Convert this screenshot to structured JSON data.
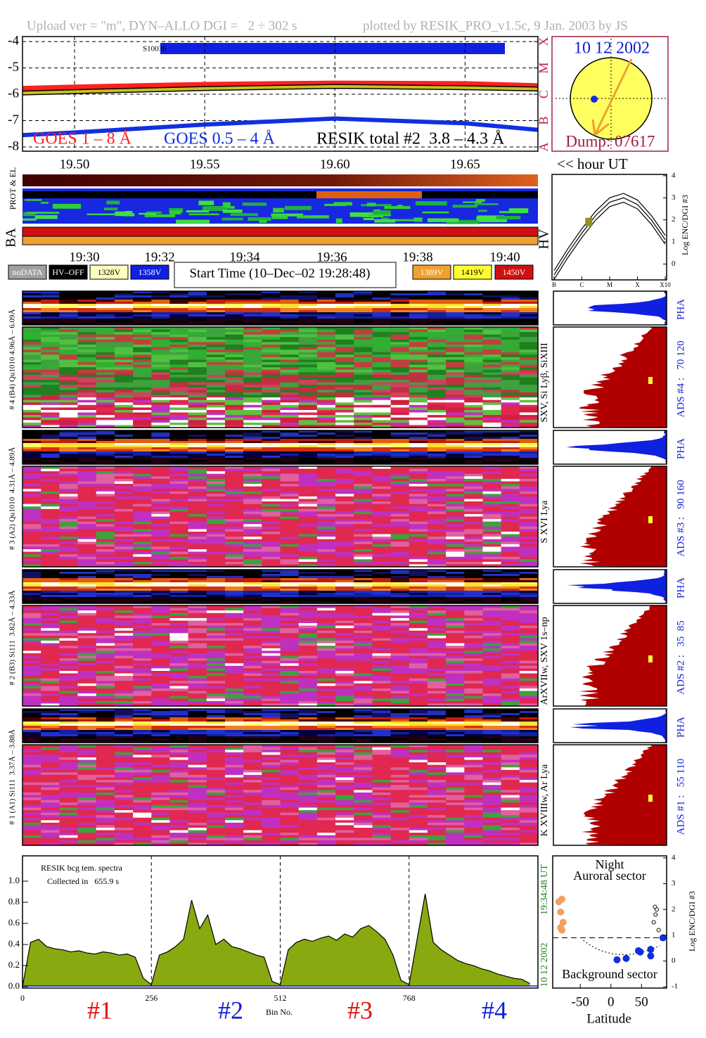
{
  "header": {
    "upload": "Upload ver = \"m\", DYN–ALLO DGI =   2 ÷ 302 s",
    "plotted": "plotted by RESIK_PRO_v1.5c, 9 Jan. 2003 by JS"
  },
  "chart_data": [
    {
      "type": "line",
      "xlabel": "<< hour UT",
      "annotation": "S10036",
      "grid": true,
      "x": [
        19.48,
        19.5,
        19.55,
        19.6,
        19.65,
        19.678
      ],
      "xlim": [
        19.48,
        19.678
      ],
      "xticks": [
        {
          "value": 19.5,
          "label": "19.50"
        },
        {
          "value": 19.55,
          "label": "19.55"
        },
        {
          "value": 19.6,
          "label": "19.60"
        },
        {
          "value": 19.65,
          "label": "19.65"
        }
      ],
      "ylim": [
        -8.16,
        -3.81
      ],
      "yticks": [
        -8,
        -7,
        -6,
        -5,
        -4
      ],
      "y2lim": [
        -8.16,
        -3.81
      ],
      "y2ticks": [
        {
          "value": -8,
          "label": "A"
        },
        {
          "value": -7,
          "label": "B"
        },
        {
          "value": -6,
          "label": "C"
        },
        {
          "value": -5,
          "label": "M"
        },
        {
          "value": -4,
          "label": "X"
        }
      ],
      "series": [
        {
          "name": "GOES 1 – 8 Å",
          "color": "#ff2020",
          "values": [
            -5.8,
            -5.75,
            -5.65,
            -5.6,
            -5.62,
            -5.7
          ]
        },
        {
          "name": "GOES 0.5 – 4 Å",
          "color": "#1030e0",
          "values": [
            -7.55,
            -7.45,
            -7.15,
            -6.92,
            -7.1,
            -7.35
          ]
        },
        {
          "name": "RESIK total #2  3.8 – 4.3 Å",
          "color": "#c8c020",
          "values": [
            -5.95,
            -5.9,
            -5.78,
            -5.7,
            -5.75,
            -5.8
          ]
        }
      ]
    },
    {
      "type": "line",
      "ylabel": "Log ENC/DGI #3",
      "side_label": "HV",
      "x": [
        0,
        0.5,
        1,
        1.5,
        2,
        2.5,
        3,
        3.5,
        4
      ],
      "xlim": [
        -0.075,
        4.05
      ],
      "xticks": [
        {
          "value": 0,
          "label": "B"
        },
        {
          "value": 1,
          "label": "C"
        },
        {
          "value": 2,
          "label": "M"
        },
        {
          "value": 3,
          "label": "X"
        },
        {
          "value": 4,
          "label": "X10"
        }
      ],
      "ylim": [
        -0.72,
        4.06
      ],
      "yticks": [
        0,
        1,
        2,
        3,
        4
      ],
      "series": [
        {
          "color": "#000000",
          "values": [
            -0.3,
            0.7,
            1.6,
            2.4,
            3.0,
            3.2,
            2.9,
            2.2,
            1.3
          ]
        },
        {
          "color": "#000000",
          "values": [
            -0.5,
            0.5,
            1.4,
            2.2,
            2.8,
            3.0,
            2.7,
            2.0,
            1.1
          ]
        },
        {
          "color": "#000000",
          "values": [
            -0.7,
            0.3,
            1.2,
            2.0,
            2.6,
            2.8,
            2.5,
            1.8,
            0.9
          ]
        }
      ],
      "marker": {
        "x": 1.25,
        "y": 1.9,
        "color": "#909020"
      }
    },
    {
      "type": "area",
      "title": "RESIK bcg tem. spectra",
      "subtitle": "Collected in   655.9 s",
      "xlabel": "Bin No.",
      "date": "10 12 2002",
      "time": "19:34:48 UT",
      "color": "#88aa10",
      "grid": true,
      "channels": [
        "#1",
        "#2",
        "#3",
        "#4"
      ],
      "x": [
        0,
        16,
        32,
        48,
        64,
        80,
        96,
        112,
        128,
        144,
        160,
        176,
        192,
        208,
        224,
        240,
        256,
        272,
        288,
        304,
        320,
        336,
        352,
        368,
        384,
        400,
        416,
        432,
        448,
        464,
        480,
        496,
        512,
        528,
        544,
        560,
        576,
        592,
        608,
        624,
        640,
        656,
        672,
        688,
        704,
        720,
        736,
        752,
        768,
        784,
        800,
        816,
        832,
        848,
        864,
        880,
        896,
        912,
        928,
        944,
        960,
        976,
        992,
        1008
      ],
      "values": [
        0.0,
        0.42,
        0.45,
        0.38,
        0.36,
        0.35,
        0.33,
        0.34,
        0.32,
        0.31,
        0.33,
        0.32,
        0.3,
        0.31,
        0.28,
        0.08,
        0.02,
        0.3,
        0.33,
        0.38,
        0.45,
        0.82,
        0.55,
        0.68,
        0.4,
        0.45,
        0.38,
        0.36,
        0.33,
        0.3,
        0.28,
        0.05,
        0.02,
        0.35,
        0.42,
        0.45,
        0.43,
        0.46,
        0.48,
        0.44,
        0.5,
        0.47,
        0.55,
        0.58,
        0.52,
        0.45,
        0.3,
        0.06,
        0.02,
        0.45,
        0.88,
        0.42,
        0.35,
        0.3,
        0.25,
        0.22,
        0.2,
        0.17,
        0.15,
        0.12,
        0.1,
        0.08,
        0.07,
        0.03
      ],
      "xlim": [
        0,
        1024
      ],
      "xticks": [
        0,
        256,
        512,
        768
      ],
      "ylim": [
        -0.013,
        1.24
      ],
      "yticks": [
        {
          "value": 0,
          "label": "0.0"
        },
        {
          "value": 0.2,
          "label": "0.2"
        },
        {
          "value": 0.4,
          "label": "0.4"
        },
        {
          "value": 0.6,
          "label": "0.6"
        },
        {
          "value": 0.8,
          "label": "0.8"
        },
        {
          "value": 1,
          "label": "1.0"
        }
      ]
    },
    {
      "type": "scatter",
      "title": "Night",
      "top_label": "Auroral sector",
      "bottom_label": "Background sector",
      "xlabel": "Latitude",
      "ylabel": "Log ENC/DGI #3",
      "hline": 0.9,
      "xlim": [
        -95,
        91
      ],
      "xticks": [
        -50,
        0,
        50
      ],
      "ylim": [
        -1.05,
        4.08
      ],
      "yticks": [
        -1,
        0,
        1,
        2,
        3,
        4
      ],
      "series": [
        {
          "color": "#f0a060",
          "x": [
            -85,
            -80,
            -82,
            -78,
            -80,
            -82
          ],
          "values": [
            2.3,
            2.4,
            1.9,
            1.5,
            1.2,
            1.3
          ]
        },
        {
          "color": "#1030e0",
          "x": [
            10,
            25,
            45,
            48,
            65,
            65,
            85
          ],
          "values": [
            0.05,
            0.1,
            0.4,
            0.35,
            0.45,
            0.2,
            0.9
          ]
        },
        {
          "color": "none",
          "x": [
            72,
            75,
            73,
            70,
            78
          ],
          "values": [
            2.1,
            2.0,
            1.8,
            1.5,
            1.2
          ]
        }
      ]
    }
  ],
  "sun": {
    "date": "10 12 2002",
    "dump": "Dump: 07617"
  },
  "status": {
    "ba": "BA",
    "prot": "PROT & EL",
    "times": [
      "19:30",
      "19:32",
      "19:34",
      "19:36",
      "19:38",
      "19:40"
    ],
    "legend": [
      "noDATA",
      "HV–OFF",
      "1328V",
      "1358V",
      "1389V",
      "1419V",
      "1450V"
    ],
    "start": "Start Time (10–Dec–02 19:28:48)"
  },
  "panels": [
    {
      "left": "# 4 (B4) Qu1010 4.96Å – 6.09Å",
      "lines": "SXV, Si Lyβ, SiXIII",
      "pha": "PHA",
      "ads": "ADS #4 :   70 120"
    },
    {
      "left": "# 3 (A2) Qu1010  4.31Å – 4.89Å",
      "lines": "S XVI Lya",
      "pha": "PHA",
      "ads": "ADS #3 :   90 160"
    },
    {
      "left": "# 2 (B3) Si111  3.82Å – 4.33Å",
      "lines": "ArXVIIw, SXV 1s–np",
      "pha": "PHA",
      "ads": "ADS #2 :   35  85"
    },
    {
      "left": "# 1 (A1) Si111  3.37Å – 3.88Å",
      "lines": "K XVIIIw, Ar Lya",
      "pha": "PHA",
      "ads": "ADS #1 :   55 110"
    }
  ]
}
